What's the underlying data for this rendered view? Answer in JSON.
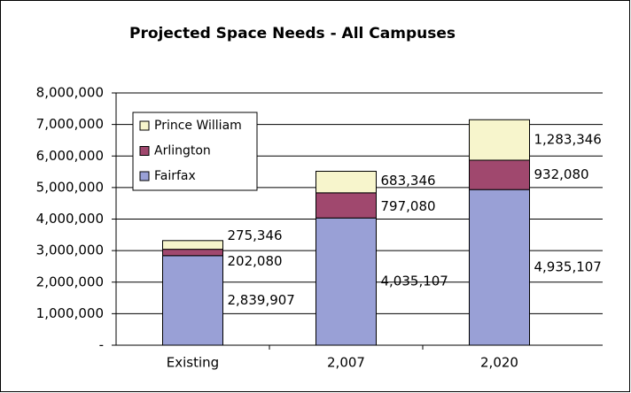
{
  "chart_data": {
    "type": "stacked_bar",
    "title": "Projected Space Needs - All Campuses",
    "categories": [
      "Existing",
      "2,007",
      "2,020"
    ],
    "series": [
      {
        "name": "Fairfax",
        "color": "#99a0d6",
        "values": [
          2839907,
          4035107,
          4935107
        ],
        "value_labels": [
          "2,839,907",
          "4,035,107",
          "4,935,107"
        ]
      },
      {
        "name": "Arlington",
        "color": "#a0486e",
        "values": [
          202080,
          797080,
          932080
        ],
        "value_labels": [
          "202,080",
          "797,080",
          "932,080"
        ]
      },
      {
        "name": "Prince William",
        "color": "#f7f5cc",
        "values": [
          275346,
          683346,
          1283346
        ],
        "value_labels": [
          "275,346",
          "683,346",
          "1,283,346"
        ]
      }
    ],
    "ylim": [
      0,
      8000000
    ],
    "yticks": [
      {
        "value": 0,
        "label": "-"
      },
      {
        "value": 1000000,
        "label": "1,000,000"
      },
      {
        "value": 2000000,
        "label": "2,000,000"
      },
      {
        "value": 3000000,
        "label": "3,000,000"
      },
      {
        "value": 4000000,
        "label": "4,000,000"
      },
      {
        "value": 5000000,
        "label": "5,000,000"
      },
      {
        "value": 6000000,
        "label": "6,000,000"
      },
      {
        "value": 7000000,
        "label": "7,000,000"
      },
      {
        "value": 8000000,
        "label": "8,000,000"
      }
    ],
    "grid": true,
    "legend": "upper left"
  }
}
